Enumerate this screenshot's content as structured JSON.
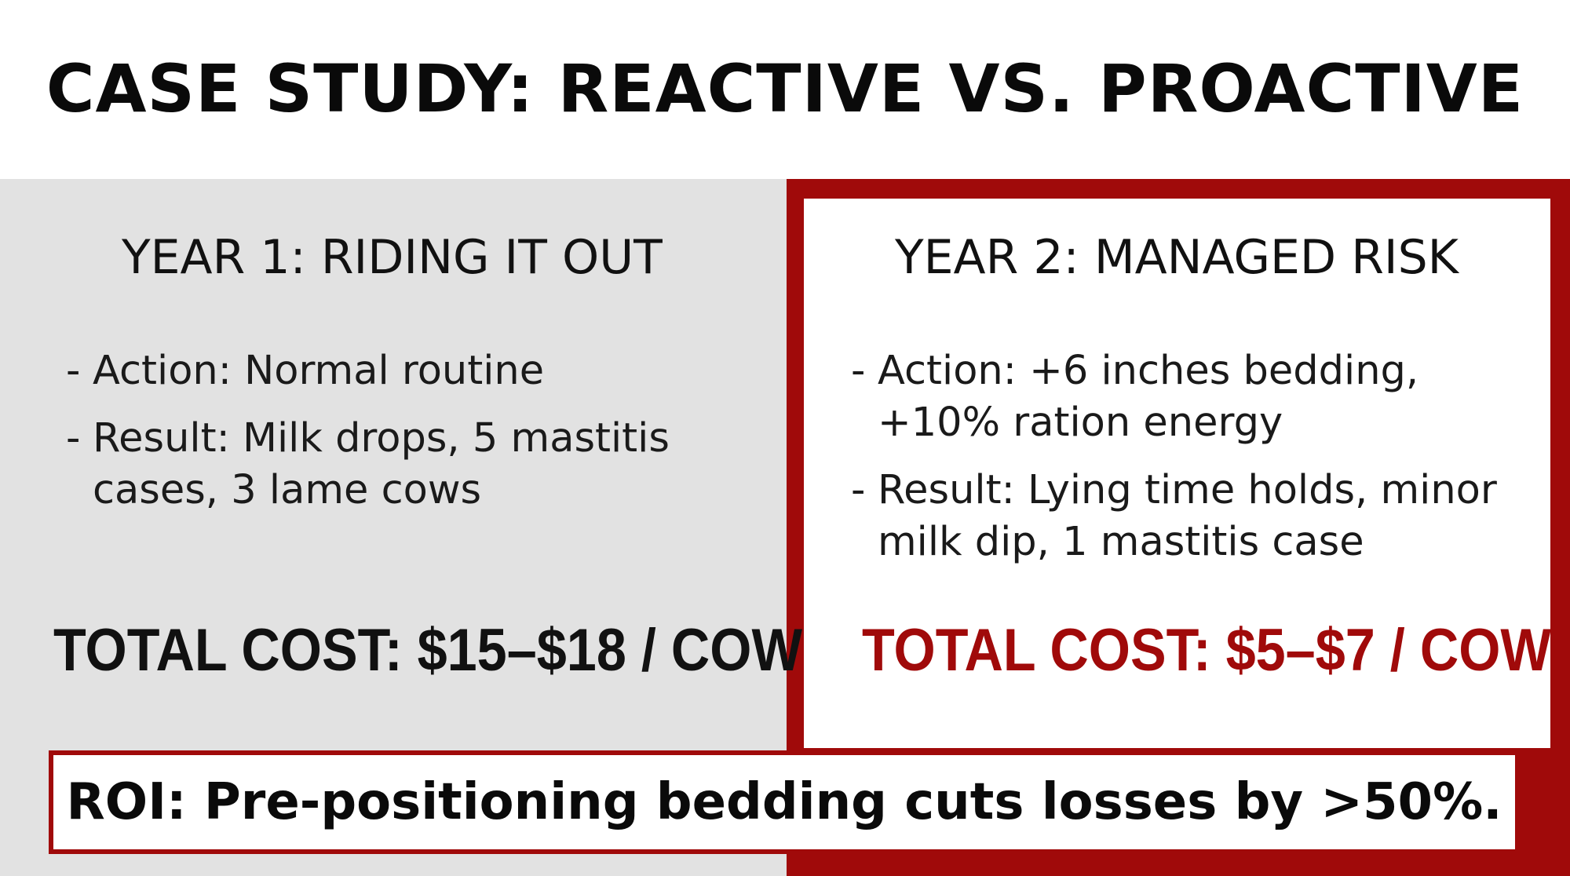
{
  "title": "CASE STUDY: REACTIVE VS. PROACTIVE",
  "year1": {
    "heading": "YEAR 1: RIDING IT OUT",
    "bullets": [
      "Action: Normal routine",
      "Result: Milk drops, 5 mastitis cases, 3 lame cows"
    ],
    "total_cost": "TOTAL COST: $15–$18 / COW"
  },
  "year2": {
    "heading": "YEAR 2: MANAGED RISK",
    "bullets": [
      "Action: +6 inches bedding, +10% ration energy",
      "Result: Lying time holds, minor milk dip, 1 mastitis case"
    ],
    "total_cost": "TOTAL COST: $5–$7 / COW"
  },
  "roi": "ROI: Pre-positioning bedding cuts losses by >50%.",
  "bullet_marker": "-",
  "colors": {
    "accent_red": "#a00a0a",
    "left_panel_gray": "#e2e2e2",
    "text_dark": "#111111"
  }
}
